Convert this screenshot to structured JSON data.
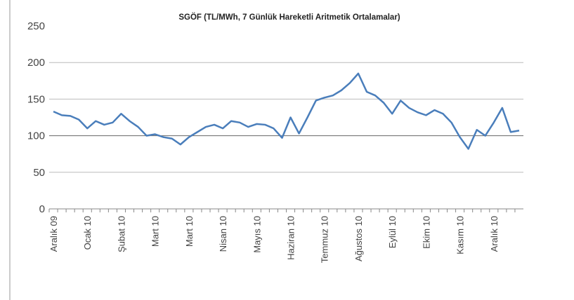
{
  "chart_data": {
    "type": "line",
    "title": "SGÖF  (TL/MWh, 7 Günlük Hareketli Aritmetik Ortalamalar)",
    "categories": [
      "Aralık 09",
      null,
      null,
      null,
      "Ocak 10",
      null,
      null,
      null,
      "Şubat 10",
      null,
      null,
      null,
      "Mart 10",
      null,
      null,
      null,
      "Mart 10",
      null,
      null,
      null,
      "Nisan 10",
      null,
      null,
      null,
      "Mayıs 10",
      null,
      null,
      null,
      "Haziran 10",
      null,
      null,
      null,
      "Temmuz 10",
      null,
      null,
      null,
      "Ağustos 10",
      null,
      null,
      null,
      "Eylül 10",
      null,
      null,
      null,
      "Ekim 10",
      null,
      null,
      null,
      "Kasım 10",
      null,
      null,
      null,
      "Aralık 10",
      null,
      null,
      null
    ],
    "series": [
      {
        "name": "SGÖF",
        "color": "#4a7ebb",
        "values": [
          133,
          128,
          127,
          122,
          110,
          120,
          115,
          118,
          130,
          120,
          112,
          100,
          102,
          98,
          96,
          88,
          98,
          105,
          112,
          115,
          110,
          120,
          118,
          112,
          116,
          115,
          110,
          97,
          125,
          103,
          125,
          148,
          152,
          155,
          162,
          172,
          185,
          160,
          155,
          145,
          130,
          148,
          138,
          132,
          128,
          135,
          130,
          118,
          98,
          82,
          108,
          100,
          118,
          138,
          105,
          107
        ]
      }
    ],
    "ylim": [
      0,
      250
    ],
    "yticks": [
      0,
      50,
      100,
      150,
      200,
      250
    ],
    "grid": true
  }
}
